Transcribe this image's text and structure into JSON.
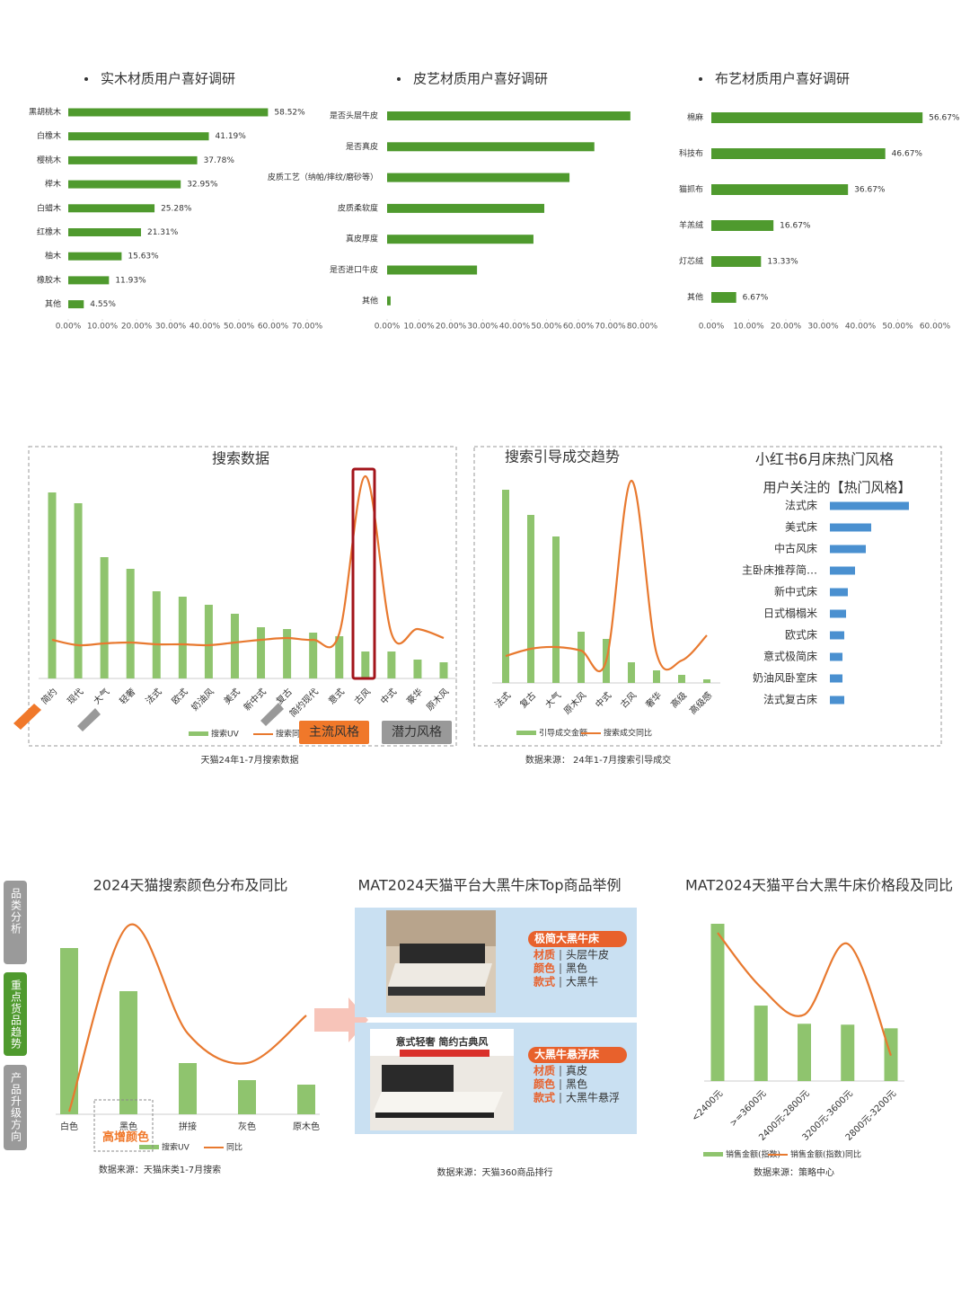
{
  "nav_tabs": [
    "品类分析",
    "重点货品趋势",
    "产品升级方向"
  ],
  "chart_data": [
    {
      "type": "hbar",
      "title": "实木材质用户喜好调研",
      "color": "#4f9a2e",
      "categories": [
        "黑胡桃木",
        "白橡木",
        "樱桃木",
        "榉木",
        "白蜡木",
        "红橡木",
        "柚木",
        "橡胶木",
        "其他"
      ],
      "values": [
        58.52,
        41.19,
        37.78,
        32.95,
        25.28,
        21.31,
        15.63,
        11.93,
        4.55
      ],
      "value_labels": [
        "58.52%",
        "41.19%",
        "37.78%",
        "32.95%",
        "25.28%",
        "21.31%",
        "15.63%",
        "11.93%",
        "4.55%"
      ],
      "xlim": [
        0,
        70
      ],
      "xticks": [
        {
          "value": 0,
          "label": "0.00%"
        },
        {
          "value": 10,
          "label": "10.00%"
        },
        {
          "value": 20,
          "label": "20.00%"
        },
        {
          "value": 30,
          "label": "30.00%"
        },
        {
          "value": 40,
          "label": "40.00%"
        },
        {
          "value": 50,
          "label": "50.00%"
        },
        {
          "value": 60,
          "label": "60.00%"
        },
        {
          "value": 70,
          "label": "70.00%"
        }
      ]
    },
    {
      "type": "hbar",
      "title": "皮艺材质用户喜好调研",
      "color": "#4f9a2e",
      "categories": [
        "是否头层牛皮",
        "是否真皮",
        "皮质工艺（纳帕/摔纹/磨砂等）",
        "皮质柔软度",
        "真皮厚度",
        "是否进口牛皮",
        "其他"
      ],
      "values": [
        76.3,
        65,
        57.2,
        49.3,
        45.9,
        28.2,
        1.1
      ],
      "xlim": [
        0,
        80
      ],
      "xticks": [
        {
          "value": 0,
          "label": "0.00%"
        },
        {
          "value": 10,
          "label": "10.00%"
        },
        {
          "value": 20,
          "label": "20.00%"
        },
        {
          "value": 30,
          "label": "30.00%"
        },
        {
          "value": 40,
          "label": "40.00%"
        },
        {
          "value": 50,
          "label": "50.00%"
        },
        {
          "value": 60,
          "label": "60.00%"
        },
        {
          "value": 70,
          "label": "70.00%"
        },
        {
          "value": 80,
          "label": "80.00%"
        }
      ]
    },
    {
      "type": "hbar",
      "title": "布艺材质用户喜好调研",
      "color": "#4f9a2e",
      "categories": [
        "棉麻",
        "科技布",
        "猫抓布",
        "羊羔绒",
        "灯芯绒",
        "其他"
      ],
      "values": [
        56.67,
        46.67,
        36.67,
        16.67,
        13.33,
        6.67
      ],
      "value_labels": [
        "56.67%",
        "46.67%",
        "36.67%",
        "16.67%",
        "13.33%",
        "6.67%"
      ],
      "xlim": [
        0,
        60
      ],
      "xticks": [
        {
          "value": 0,
          "label": "0.00%"
        },
        {
          "value": 10,
          "label": "10.00%"
        },
        {
          "value": 20,
          "label": "20.00%"
        },
        {
          "value": 30,
          "label": "30.00%"
        },
        {
          "value": 40,
          "label": "40.00%"
        },
        {
          "value": 50,
          "label": "50.00%"
        },
        {
          "value": 60,
          "label": "60.00%"
        }
      ]
    },
    {
      "type": "combo",
      "title": "搜索数据",
      "caption": "天猫24年1-7月搜索数据",
      "annotations": [
        "主流风格",
        "潜力风格"
      ],
      "categories": [
        "简约",
        "现代",
        "大气",
        "轻奢",
        "法式",
        "欧式",
        "奶油风",
        "美式",
        "新中式",
        "复古",
        "简约现代",
        "意式",
        "古风",
        "中式",
        "豪华",
        "原木风"
      ],
      "series": [
        {
          "name": "搜索UV",
          "kind": "bar",
          "color": "#8fc46e",
          "values": [
            207,
            195,
            135,
            122,
            97,
            91,
            82,
            72,
            57,
            55,
            51,
            47,
            30,
            30,
            21,
            18
          ]
        },
        {
          "name": "搜索同比",
          "kind": "line",
          "color": "#e8792f",
          "values": [
            43,
            37,
            39,
            40,
            38,
            38,
            37,
            40,
            43,
            45,
            43,
            50,
            225,
            50,
            55,
            45
          ]
        }
      ]
    },
    {
      "type": "combo",
      "title": "搜索引导成交趋势",
      "caption": "数据来源： 24年1-7月搜索引导成交",
      "categories": [
        "法式",
        "复古",
        "大气",
        "原木风",
        "中式",
        "古风",
        "奢华",
        "高级",
        "高级感"
      ],
      "series": [
        {
          "name": "引导成交金额",
          "kind": "bar",
          "color": "#8fc46e",
          "values": [
            215,
            187,
            163,
            57,
            49,
            23,
            14,
            9,
            4
          ]
        },
        {
          "name": "搜索成交同比",
          "kind": "line",
          "color": "#e8792f",
          "values": [
            30,
            38,
            40,
            36,
            25,
            225,
            33,
            25,
            53
          ]
        }
      ]
    },
    {
      "type": "hbar",
      "title": "小红书6月床热门风格",
      "subtitle": "用户关注的【热门风格】",
      "color": "#4a90d0",
      "categories": [
        "法式床",
        "美式床",
        "中古风床",
        "主卧床推荐简…",
        "新中式床",
        "日式榻榻米",
        "欧式床",
        "意式极简床",
        "奶油风卧室床",
        "法式复古床"
      ],
      "values": [
        88,
        46,
        40,
        28,
        20,
        18,
        16,
        14,
        14,
        16
      ]
    },
    {
      "type": "combo",
      "title": "2024天猫搜索颜色分布及同比",
      "caption": "数据来源：天猫床类1-7月搜索",
      "annotation": "高增颜色",
      "categories": [
        "白色",
        "黑色",
        "拼接",
        "灰色",
        "原木色"
      ],
      "series": [
        {
          "name": "搜索UV",
          "kind": "bar",
          "color": "#8fc46e",
          "values": [
            185,
            137,
            57,
            38,
            33
          ]
        },
        {
          "name": "同比",
          "kind": "line",
          "color": "#e8792f",
          "values": [
            3,
            210,
            90,
            57,
            110
          ]
        }
      ]
    },
    {
      "type": "combo",
      "title": "MAT2024天猫平台大黑牛床价格段及同比",
      "caption": "数据来源：策略中心",
      "categories": [
        "<2400元",
        ">=3600元",
        "2400元-2800元",
        "3200元-3600元",
        "2800元-3200元"
      ],
      "series": [
        {
          "name": "销售金额(指数)",
          "kind": "bar",
          "color": "#8fc46e",
          "values": [
            173,
            83,
            63,
            62,
            58
          ]
        },
        {
          "name": "销售金额(指数)同比",
          "kind": "line",
          "color": "#e8792f",
          "values": [
            163,
            103,
            73,
            151,
            28
          ]
        }
      ]
    }
  ],
  "products": {
    "title": "MAT2024天猫平台大黑牛床Top商品举例",
    "caption": "数据来源：天猫360商品排行",
    "items": [
      {
        "name": "极简大黑牛床",
        "rows": [
          [
            "材质",
            "头层牛皮"
          ],
          [
            "颜色",
            "黑色"
          ],
          [
            "款式",
            "大黑牛"
          ]
        ]
      },
      {
        "name": "大黑牛悬浮床",
        "image_text": "意式轻奢 简约古典风",
        "rows": [
          [
            "材质",
            "真皮"
          ],
          [
            "颜色",
            "黑色"
          ],
          [
            "款式",
            "大黑牛悬浮"
          ]
        ]
      }
    ]
  }
}
